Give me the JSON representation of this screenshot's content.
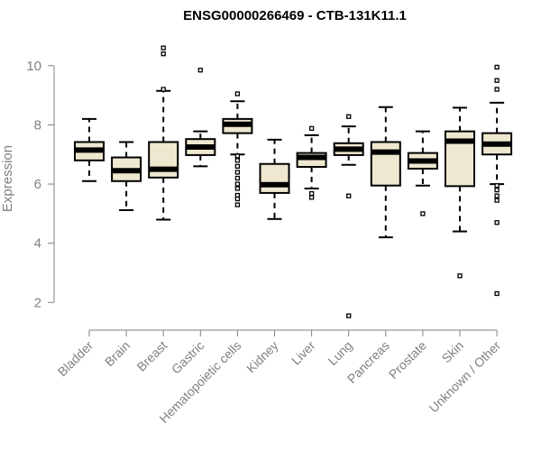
{
  "chart_data": {
    "type": "boxplot",
    "title": "ENSG00000266469 - CTB-131K11.1",
    "xlabel": "",
    "ylabel": "Expression",
    "ylim": [
      1.4,
      11.0
    ],
    "yticks": [
      2,
      4,
      6,
      8,
      10
    ],
    "ytick_labels": [
      "2",
      "4",
      "6",
      "8",
      "10"
    ],
    "box_color": "#efe8d0",
    "categories": [
      "Bladder",
      "Brain",
      "Breast",
      "Gastric",
      "Hematopoietic cells",
      "Kidney",
      "Liver",
      "Lung",
      "Pancreas",
      "Prostate",
      "Skin",
      "Unknown / Other"
    ],
    "series": [
      {
        "name": "Bladder",
        "whisker_low": 6.1,
        "q1": 6.8,
        "median": 7.15,
        "q3": 7.42,
        "whisker_high": 8.2,
        "outliers": []
      },
      {
        "name": "Brain",
        "whisker_low": 5.12,
        "q1": 6.1,
        "median": 6.45,
        "q3": 6.9,
        "whisker_high": 7.42,
        "outliers": []
      },
      {
        "name": "Breast",
        "whisker_low": 4.8,
        "q1": 6.22,
        "median": 6.5,
        "q3": 7.42,
        "whisker_high": 9.15,
        "outliers": [
          9.2,
          10.4,
          10.6
        ]
      },
      {
        "name": "Gastric",
        "whisker_low": 6.6,
        "q1": 6.98,
        "median": 7.25,
        "q3": 7.52,
        "whisker_high": 7.78,
        "outliers": [
          9.85
        ]
      },
      {
        "name": "Hematopoietic cells",
        "whisker_low": 7.0,
        "q1": 7.72,
        "median": 8.02,
        "q3": 8.2,
        "whisker_high": 8.8,
        "outliers": [
          9.05,
          6.95,
          6.8,
          6.6,
          6.4,
          6.2,
          6.0,
          5.85,
          5.62,
          5.5,
          5.3
        ]
      },
      {
        "name": "Kidney",
        "whisker_low": 4.82,
        "q1": 5.7,
        "median": 5.98,
        "q3": 6.68,
        "whisker_high": 7.5,
        "outliers": []
      },
      {
        "name": "Liver",
        "whisker_low": 5.85,
        "q1": 6.58,
        "median": 6.9,
        "q3": 7.05,
        "whisker_high": 7.65,
        "outliers": [
          7.88,
          5.68,
          5.55
        ]
      },
      {
        "name": "Lung",
        "whisker_low": 6.65,
        "q1": 6.98,
        "median": 7.18,
        "q3": 7.38,
        "whisker_high": 7.95,
        "outliers": [
          8.28,
          5.6,
          1.55
        ]
      },
      {
        "name": "Pancreas",
        "whisker_low": 4.2,
        "q1": 5.95,
        "median": 7.08,
        "q3": 7.42,
        "whisker_high": 8.6,
        "outliers": []
      },
      {
        "name": "Prostate",
        "whisker_low": 5.95,
        "q1": 6.52,
        "median": 6.78,
        "q3": 7.05,
        "whisker_high": 7.78,
        "outliers": [
          5.0
        ]
      },
      {
        "name": "Skin",
        "whisker_low": 4.4,
        "q1": 5.93,
        "median": 7.45,
        "q3": 7.78,
        "whisker_high": 8.58,
        "outliers": [
          2.9
        ]
      },
      {
        "name": "Unknown / Other",
        "whisker_low": 6.0,
        "q1": 7.0,
        "median": 7.35,
        "q3": 7.72,
        "whisker_high": 8.75,
        "outliers": [
          9.2,
          9.5,
          9.95,
          5.95,
          5.8,
          5.6,
          5.45,
          4.7,
          2.3
        ]
      }
    ]
  }
}
